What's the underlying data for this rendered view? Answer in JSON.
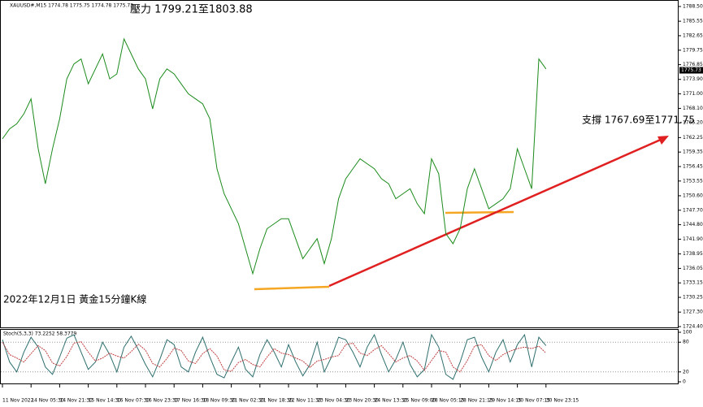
{
  "chart_data": [
    {
      "type": "line",
      "title": "2022年12月1日 黃金15分鐘K線",
      "subtitle": "XAUUSD#,M15  1774.78 1775.75 1774.78 1775.73",
      "annotations": [
        "壓力 1799.21至1803.88",
        "支撐 1767.69至1771.75"
      ],
      "last_price": 1775.73,
      "categories": [
        "11 Nov 2022",
        null,
        null,
        null,
        "14 Nov 05:30",
        null,
        null,
        null,
        "14 Nov 21:30",
        null,
        null,
        null,
        "15 Nov 14:30",
        null,
        null,
        null,
        "16 Nov 07:30",
        null,
        null,
        null,
        "16 Nov 23:30",
        null,
        null,
        null,
        "17 Nov 16:30",
        null,
        null,
        null,
        "18 Nov 09:30",
        null,
        null,
        null,
        "21 Nov 02:30",
        null,
        null,
        null,
        "21 Nov 18:30",
        null,
        null,
        null,
        "22 Nov 11:30",
        null,
        null,
        null,
        "23 Nov 04:30",
        null,
        null,
        null,
        "23 Nov 20:30",
        null,
        null,
        null,
        "24 Nov 13:30",
        null,
        null,
        null,
        "25 Nov 09:00",
        null,
        null,
        null,
        "28 Nov 05:15",
        null,
        null,
        null,
        "28 Nov 21:15",
        null,
        null,
        null,
        "29 Nov 14:15",
        null,
        null,
        null,
        "30 Nov 07:15",
        null,
        null,
        null,
        "30 Nov 23:15"
      ],
      "series": [
        {
          "color": "#1a8a1a",
          "values": [
            1762,
            1764,
            1765,
            1767,
            1770,
            1760,
            1753,
            1760,
            1766,
            1774,
            1777,
            1778,
            1773,
            1776,
            1779,
            1774,
            1775,
            1782,
            1779,
            1776,
            1774,
            1768,
            1774,
            1776,
            1775,
            1773,
            1771,
            1770,
            1769,
            1766,
            1756,
            1751,
            1748,
            1745,
            1740,
            1735,
            1740,
            1744,
            1745,
            1746,
            1746,
            1742,
            1738,
            1740,
            1742,
            1737,
            1742,
            1750,
            1754,
            1756,
            1758,
            1757,
            1756,
            1754,
            1753,
            1750,
            1751,
            1752,
            1749,
            1747,
            1758,
            1755,
            1743,
            1741,
            1744,
            1752,
            1756,
            1752,
            1748,
            1749,
            1750,
            1752,
            1760,
            1756,
            1752,
            1778,
            1776
          ]
        }
      ],
      "ylim": [
        1724.4,
        1788.5
      ],
      "yticks": [
        {
          "value": 1788.5,
          "label": "1788.50"
        },
        1785.55,
        1782.65,
        1779.75,
        1776.85,
        {
          "value": 1773.9,
          "label": "1773.90"
        },
        {
          "value": 1771,
          "label": "1771.00"
        },
        {
          "value": 1768.1,
          "label": "1768.10"
        },
        {
          "value": 1765.2,
          "label": "1765.20"
        },
        1762.25,
        1759.35,
        1756.45,
        1753.55,
        {
          "value": 1750.6,
          "label": "1750.60"
        },
        {
          "value": 1747.7,
          "label": "1747.70"
        },
        {
          "value": 1744.8,
          "label": "1744.80"
        },
        {
          "value": 1741.9,
          "label": "1741.90"
        },
        1738.95,
        1736.05,
        1733.15,
        1730.25,
        {
          "value": 1727.3,
          "label": "1727.30"
        },
        {
          "value": 1724.4,
          "label": "1724.40"
        }
      ]
    },
    {
      "type": "line",
      "title": "Stoch(5,3,3) 73.2252 58.3779",
      "series": [
        {
          "color": "#2f6f6f",
          "values": [
            85,
            40,
            20,
            60,
            90,
            70,
            30,
            15,
            50,
            88,
            95,
            60,
            25,
            40,
            80,
            55,
            20,
            70,
            92,
            65,
            35,
            10,
            45,
            85,
            75,
            30,
            20,
            60,
            90,
            50,
            15,
            8,
            40,
            70,
            25,
            10,
            55,
            85,
            60,
            30,
            75,
            40,
            12,
            35,
            80,
            20,
            50,
            90,
            85,
            60,
            30,
            70,
            95,
            55,
            20,
            45,
            80,
            35,
            10,
            25,
            95,
            70,
            15,
            5,
            40,
            85,
            90,
            50,
            20,
            60,
            85,
            40,
            75,
            95,
            30,
            90,
            73
          ]
        },
        {
          "color": "#c04040",
          "values": [
            80,
            55,
            48,
            40,
            57,
            73,
            63,
            38,
            32,
            51,
            78,
            81,
            60,
            42,
            48,
            58,
            52,
            48,
            61,
            76,
            64,
            37,
            30,
            47,
            68,
            63,
            42,
            37,
            57,
            67,
            52,
            24,
            21,
            39,
            45,
            35,
            30,
            50,
            67,
            58,
            55,
            48,
            42,
            29,
            42,
            45,
            50,
            53,
            75,
            78,
            58,
            53,
            65,
            73,
            57,
            40,
            48,
            53,
            42,
            23,
            43,
            63,
            60,
            30,
            20,
            43,
            72,
            75,
            53,
            43,
            55,
            62,
            67,
            70,
            67,
            72,
            58
          ]
        }
      ],
      "ylim": [
        0,
        100
      ],
      "yticks": [
        100,
        80,
        20,
        0
      ]
    }
  ]
}
